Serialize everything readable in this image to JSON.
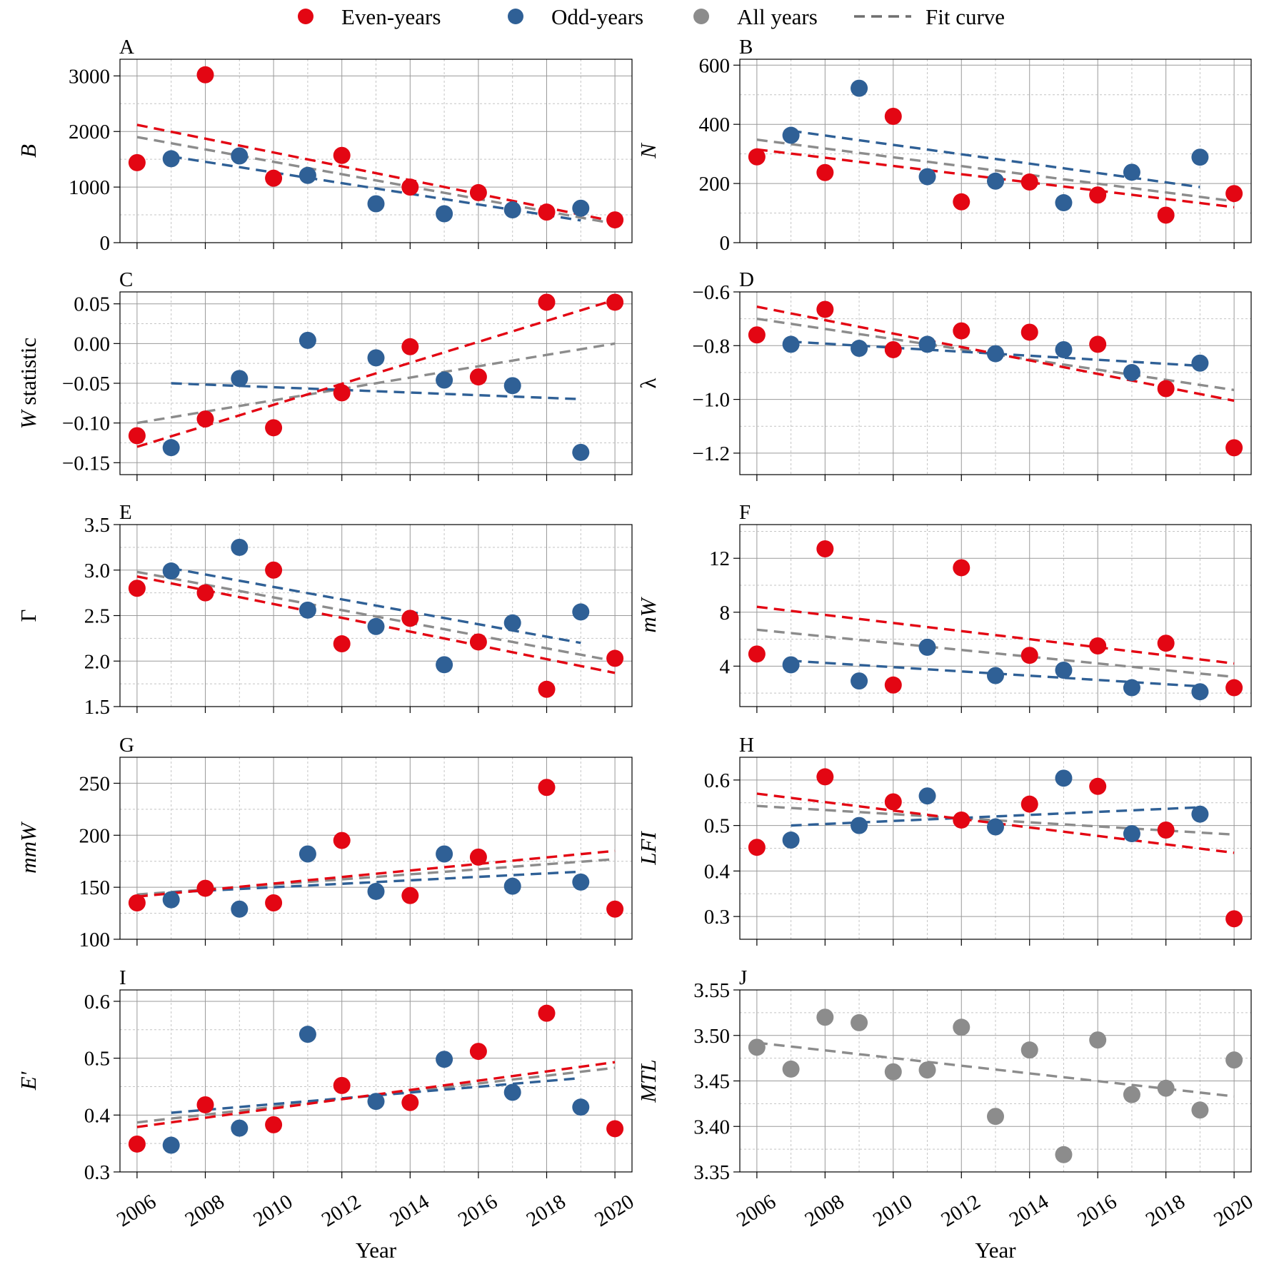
{
  "legend": {
    "items": [
      {
        "label": "Even-years",
        "color": "#e30613",
        "marker": "dot"
      },
      {
        "label": "Odd-years",
        "color": "#2f6096",
        "marker": "dot"
      },
      {
        "label": "All years",
        "color": "#8c8c8c",
        "marker": "dot"
      },
      {
        "label": "Fit curve",
        "color": "#6e6e6e",
        "marker": "dash"
      }
    ]
  },
  "colors": {
    "even": "#e30613",
    "odd": "#2f6096",
    "all": "#8c8c8c"
  },
  "xlabel": "Year",
  "chart_data": [
    {
      "panel": "A",
      "type": "scatter",
      "ylabel": "B",
      "ylabel_suffix": "",
      "xlim": [
        2005.5,
        2020.5
      ],
      "ylim": [
        0,
        3300
      ],
      "yticks": [
        0,
        1000,
        2000,
        3000
      ],
      "xticks": [
        2006,
        2008,
        2010,
        2012,
        2014,
        2016,
        2018,
        2020
      ],
      "grid": true,
      "even": {
        "x": [
          2006,
          2008,
          2010,
          2012,
          2014,
          2016,
          2018,
          2020
        ],
        "y": [
          1440,
          3020,
          1160,
          1570,
          1000,
          900,
          550,
          410
        ]
      },
      "odd": {
        "x": [
          2007,
          2009,
          2011,
          2013,
          2015,
          2017,
          2019
        ],
        "y": [
          1510,
          1560,
          1210,
          700,
          520,
          590,
          620
        ]
      },
      "fits": {
        "even": [
          [
            2006,
            2120
          ],
          [
            2020,
            380
          ]
        ],
        "odd": [
          [
            2007,
            1550
          ],
          [
            2019,
            400
          ]
        ],
        "all": [
          [
            2006,
            1900
          ],
          [
            2020,
            340
          ]
        ]
      }
    },
    {
      "panel": "B",
      "type": "scatter",
      "ylabel": "N",
      "ylabel_suffix": "",
      "xlim": [
        2005.5,
        2020.5
      ],
      "ylim": [
        0,
        620
      ],
      "yticks": [
        0,
        200,
        400,
        600
      ],
      "xticks": [
        2006,
        2008,
        2010,
        2012,
        2014,
        2016,
        2018,
        2020
      ],
      "grid": true,
      "even": {
        "x": [
          2006,
          2008,
          2010,
          2012,
          2014,
          2016,
          2018,
          2020
        ],
        "y": [
          290,
          237,
          427,
          138,
          205,
          161,
          93,
          166
        ]
      },
      "odd": {
        "x": [
          2007,
          2009,
          2011,
          2013,
          2015,
          2017,
          2019
        ],
        "y": [
          363,
          522,
          223,
          208,
          135,
          238,
          289
        ]
      },
      "fits": {
        "even": [
          [
            2006,
            315
          ],
          [
            2020,
            120
          ]
        ],
        "odd": [
          [
            2007,
            378
          ],
          [
            2019,
            188
          ]
        ],
        "all": [
          [
            2006,
            348
          ],
          [
            2020,
            140
          ]
        ]
      }
    },
    {
      "panel": "C",
      "type": "scatter",
      "ylabel": "W",
      "ylabel_suffix": " statistic",
      "xlim": [
        2005.5,
        2020.5
      ],
      "ylim": [
        -0.165,
        0.065
      ],
      "yticks": [
        -0.15,
        -0.1,
        -0.05,
        0.0,
        0.05
      ],
      "xticks": [
        2006,
        2008,
        2010,
        2012,
        2014,
        2016,
        2018,
        2020
      ],
      "grid": true,
      "even": {
        "x": [
          2006,
          2008,
          2010,
          2012,
          2014,
          2016,
          2018,
          2020
        ],
        "y": [
          -0.116,
          -0.095,
          -0.106,
          -0.062,
          -0.004,
          -0.042,
          0.052,
          0.052
        ]
      },
      "odd": {
        "x": [
          2007,
          2009,
          2011,
          2013,
          2015,
          2017,
          2019
        ],
        "y": [
          -0.131,
          -0.044,
          0.004,
          -0.018,
          -0.046,
          -0.053,
          -0.137
        ]
      },
      "fits": {
        "even": [
          [
            2006,
            -0.13
          ],
          [
            2020,
            0.055
          ]
        ],
        "odd": [
          [
            2007,
            -0.05
          ],
          [
            2019,
            -0.07
          ]
        ],
        "all": [
          [
            2006,
            -0.1
          ],
          [
            2020,
            0.0
          ]
        ]
      }
    },
    {
      "panel": "D",
      "type": "scatter",
      "ylabel": "λ",
      "ylabel_suffix": "",
      "xlim": [
        2005.5,
        2020.5
      ],
      "ylim": [
        -1.28,
        -0.6
      ],
      "yticks": [
        -1.2,
        -1.0,
        -0.8,
        -0.6
      ],
      "xticks": [
        2006,
        2008,
        2010,
        2012,
        2014,
        2016,
        2018,
        2020
      ],
      "grid": true,
      "even": {
        "x": [
          2006,
          2008,
          2010,
          2012,
          2014,
          2016,
          2018,
          2020
        ],
        "y": [
          -0.76,
          -0.665,
          -0.815,
          -0.745,
          -0.75,
          -0.795,
          -0.96,
          -1.18
        ]
      },
      "odd": {
        "x": [
          2007,
          2009,
          2011,
          2013,
          2015,
          2017,
          2019
        ],
        "y": [
          -0.795,
          -0.81,
          -0.795,
          -0.83,
          -0.815,
          -0.9,
          -0.865
        ]
      },
      "fits": {
        "even": [
          [
            2006,
            -0.655
          ],
          [
            2020,
            -1.005
          ]
        ],
        "odd": [
          [
            2007,
            -0.785
          ],
          [
            2019,
            -0.875
          ]
        ],
        "all": [
          [
            2006,
            -0.7
          ],
          [
            2020,
            -0.965
          ]
        ]
      }
    },
    {
      "panel": "E",
      "type": "scatter",
      "ylabel": "Γ",
      "ylabel_suffix": "",
      "xlim": [
        2005.5,
        2020.5
      ],
      "ylim": [
        1.5,
        3.5
      ],
      "yticks": [
        1.5,
        2.0,
        2.5,
        3.0,
        3.5
      ],
      "xticks": [
        2006,
        2008,
        2010,
        2012,
        2014,
        2016,
        2018,
        2020
      ],
      "grid": true,
      "even": {
        "x": [
          2006,
          2008,
          2010,
          2012,
          2014,
          2016,
          2018,
          2020
        ],
        "y": [
          2.8,
          2.75,
          3.0,
          2.19,
          2.47,
          2.21,
          1.69,
          2.03
        ]
      },
      "odd": {
        "x": [
          2007,
          2009,
          2011,
          2013,
          2015,
          2017,
          2019
        ],
        "y": [
          2.99,
          3.25,
          2.56,
          2.38,
          1.96,
          2.42,
          2.54
        ]
      },
      "fits": {
        "even": [
          [
            2006,
            2.93
          ],
          [
            2020,
            1.87
          ]
        ],
        "odd": [
          [
            2007,
            3.02
          ],
          [
            2019,
            2.2
          ]
        ],
        "all": [
          [
            2006,
            2.98
          ],
          [
            2020,
            2.0
          ]
        ]
      }
    },
    {
      "panel": "F",
      "type": "scatter",
      "ylabel": "mW",
      "ylabel_suffix": "",
      "xlim": [
        2005.5,
        2020.5
      ],
      "ylim": [
        1.0,
        14.5
      ],
      "yticks": [
        4,
        8,
        12
      ],
      "xticks": [
        2006,
        2008,
        2010,
        2012,
        2014,
        2016,
        2018,
        2020
      ],
      "grid": true,
      "even": {
        "x": [
          2006,
          2008,
          2010,
          2012,
          2014,
          2016,
          2018,
          2020
        ],
        "y": [
          4.9,
          12.7,
          2.6,
          11.3,
          4.8,
          5.5,
          5.7,
          2.4
        ]
      },
      "odd": {
        "x": [
          2007,
          2009,
          2011,
          2013,
          2015,
          2017,
          2019
        ],
        "y": [
          4.1,
          2.9,
          5.4,
          3.3,
          3.7,
          2.4,
          2.1
        ]
      },
      "fits": {
        "even": [
          [
            2006,
            8.4
          ],
          [
            2020,
            4.2
          ]
        ],
        "odd": [
          [
            2007,
            4.4
          ],
          [
            2019,
            2.5
          ]
        ],
        "all": [
          [
            2006,
            6.7
          ],
          [
            2020,
            3.2
          ]
        ]
      }
    },
    {
      "panel": "G",
      "type": "scatter",
      "ylabel": "mmW",
      "ylabel_suffix": "",
      "xlim": [
        2005.5,
        2020.5
      ],
      "ylim": [
        100,
        275
      ],
      "yticks": [
        100,
        150,
        200,
        250
      ],
      "xticks": [
        2006,
        2008,
        2010,
        2012,
        2014,
        2016,
        2018,
        2020
      ],
      "grid": true,
      "even": {
        "x": [
          2006,
          2008,
          2010,
          2012,
          2014,
          2016,
          2018,
          2020
        ],
        "y": [
          135,
          149,
          135,
          195,
          142,
          179,
          246,
          129
        ]
      },
      "odd": {
        "x": [
          2007,
          2009,
          2011,
          2013,
          2015,
          2017,
          2019
        ],
        "y": [
          138,
          129,
          182,
          146,
          182,
          151,
          155
        ]
      },
      "fits": {
        "even": [
          [
            2006,
            141
          ],
          [
            2020,
            185
          ]
        ],
        "odd": [
          [
            2007,
            145
          ],
          [
            2019,
            165
          ]
        ],
        "all": [
          [
            2006,
            143
          ],
          [
            2020,
            177
          ]
        ]
      }
    },
    {
      "panel": "H",
      "type": "scatter",
      "ylabel": "LFI",
      "ylabel_suffix": "",
      "xlim": [
        2005.5,
        2020.5
      ],
      "ylim": [
        0.25,
        0.65
      ],
      "yticks": [
        0.3,
        0.4,
        0.5,
        0.6
      ],
      "xticks": [
        2006,
        2008,
        2010,
        2012,
        2014,
        2016,
        2018,
        2020
      ],
      "grid": true,
      "even": {
        "x": [
          2006,
          2008,
          2010,
          2012,
          2014,
          2016,
          2018,
          2020
        ],
        "y": [
          0.452,
          0.607,
          0.552,
          0.512,
          0.547,
          0.586,
          0.49,
          0.295
        ]
      },
      "odd": {
        "x": [
          2007,
          2009,
          2011,
          2013,
          2015,
          2017,
          2019
        ],
        "y": [
          0.468,
          0.5,
          0.565,
          0.497,
          0.604,
          0.482,
          0.525
        ]
      },
      "fits": {
        "even": [
          [
            2006,
            0.57
          ],
          [
            2020,
            0.44
          ]
        ],
        "odd": [
          [
            2007,
            0.5
          ],
          [
            2019,
            0.54
          ]
        ],
        "all": [
          [
            2006,
            0.543
          ],
          [
            2020,
            0.48
          ]
        ]
      }
    },
    {
      "panel": "I",
      "type": "scatter",
      "ylabel": "E'",
      "ylabel_suffix": "",
      "xlim": [
        2005.5,
        2020.5
      ],
      "ylim": [
        0.3,
        0.62
      ],
      "yticks": [
        0.3,
        0.4,
        0.5,
        0.6
      ],
      "xticks": [
        2006,
        2008,
        2010,
        2012,
        2014,
        2016,
        2018,
        2020
      ],
      "grid": true,
      "even": {
        "x": [
          2006,
          2008,
          2010,
          2012,
          2014,
          2016,
          2018,
          2020
        ],
        "y": [
          0.349,
          0.418,
          0.383,
          0.452,
          0.422,
          0.512,
          0.579,
          0.376
        ]
      },
      "odd": {
        "x": [
          2007,
          2009,
          2011,
          2013,
          2015,
          2017,
          2019
        ],
        "y": [
          0.347,
          0.377,
          0.542,
          0.424,
          0.498,
          0.44,
          0.414
        ]
      },
      "fits": {
        "even": [
          [
            2006,
            0.379
          ],
          [
            2020,
            0.493
          ]
        ],
        "odd": [
          [
            2007,
            0.404
          ],
          [
            2019,
            0.465
          ]
        ],
        "all": [
          [
            2006,
            0.387
          ],
          [
            2020,
            0.483
          ]
        ]
      }
    },
    {
      "panel": "J",
      "type": "scatter",
      "ylabel": "MTL",
      "ylabel_suffix": "",
      "xlim": [
        2005.5,
        2020.5
      ],
      "ylim": [
        3.35,
        3.55
      ],
      "yticks": [
        3.35,
        3.4,
        3.45,
        3.5,
        3.55
      ],
      "xticks": [
        2006,
        2008,
        2010,
        2012,
        2014,
        2016,
        2018,
        2020
      ],
      "grid": true,
      "all": {
        "x": [
          2006,
          2007,
          2008,
          2009,
          2010,
          2011,
          2012,
          2013,
          2014,
          2015,
          2016,
          2017,
          2018,
          2019,
          2020
        ],
        "y": [
          3.487,
          3.463,
          3.52,
          3.514,
          3.46,
          3.462,
          3.509,
          3.411,
          3.484,
          3.369,
          3.495,
          3.435,
          3.442,
          3.418,
          3.473
        ]
      },
      "fits": {
        "all": [
          [
            2006,
            3.492
          ],
          [
            2020,
            3.433
          ]
        ]
      }
    }
  ]
}
